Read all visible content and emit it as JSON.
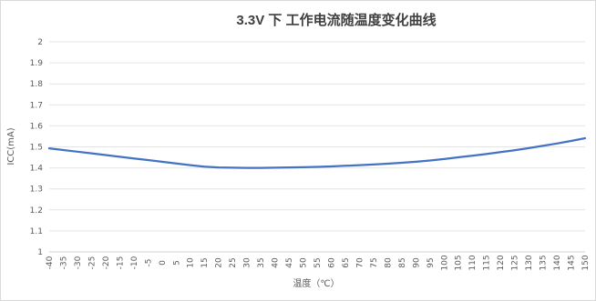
{
  "chart_data": {
    "type": "line",
    "title": "3.3V 下  工作电流随温度变化曲线",
    "xlabel": "温度（℃）",
    "ylabel": "ICC(mA)",
    "ylim": [
      1,
      2
    ],
    "yticks": [
      "1",
      "1.1",
      "1.2",
      "1.3",
      "1.4",
      "1.5",
      "1.6",
      "1.7",
      "1.8",
      "1.9",
      "2"
    ],
    "categories": [
      "-40",
      "-35",
      "-30",
      "-25",
      "-20",
      "-15",
      "-10",
      "-5",
      "0",
      "5",
      "10",
      "15",
      "20",
      "25",
      "30",
      "35",
      "40",
      "45",
      "50",
      "55",
      "60",
      "65",
      "70",
      "75",
      "80",
      "85",
      "90",
      "95",
      "100",
      "105",
      "110",
      "115",
      "120",
      "125",
      "130",
      "135",
      "140",
      "145",
      "150"
    ],
    "series": [
      {
        "values": [
          1.493,
          1.485,
          1.477,
          1.469,
          1.461,
          1.453,
          1.445,
          1.437,
          1.429,
          1.421,
          1.413,
          1.406,
          1.402,
          1.401,
          1.4,
          1.4,
          1.401,
          1.402,
          1.403,
          1.405,
          1.407,
          1.41,
          1.413,
          1.416,
          1.42,
          1.424,
          1.429,
          1.435,
          1.442,
          1.45,
          1.458,
          1.466,
          1.475,
          1.484,
          1.494,
          1.505,
          1.516,
          1.528,
          1.541
        ]
      }
    ],
    "grid": true,
    "legend": "none",
    "colors": {
      "series": "#4472c4",
      "grid": "#e4e4e4",
      "text": "#595959",
      "title": "#404040"
    }
  }
}
